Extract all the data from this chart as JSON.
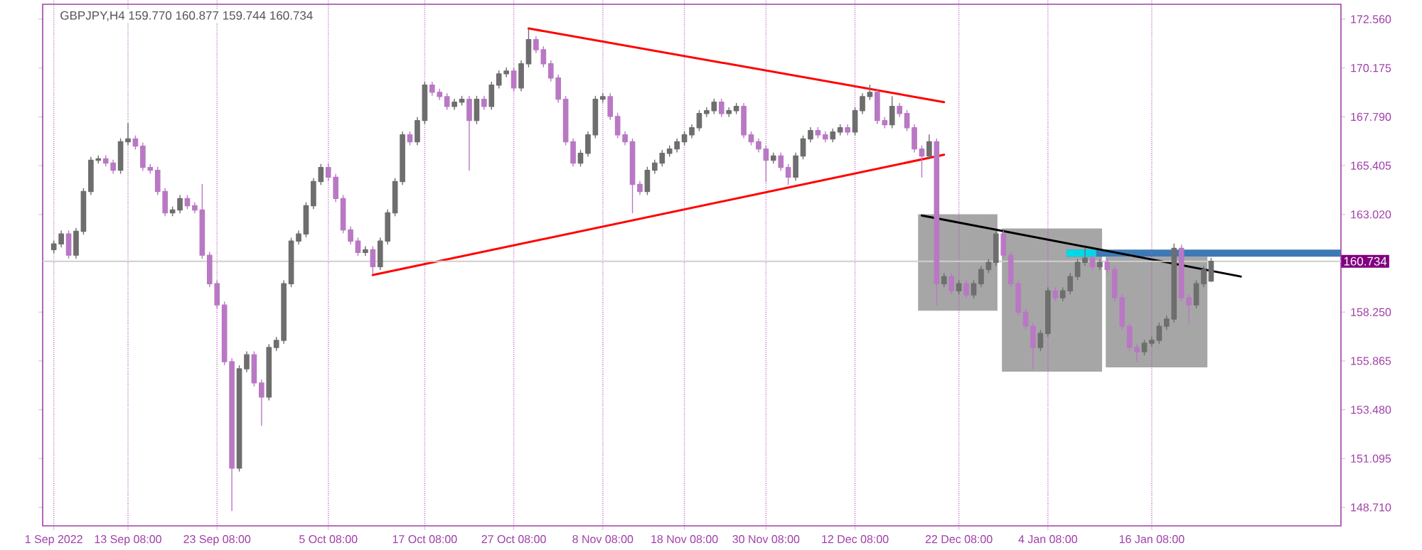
{
  "chart_data": {
    "type": "candlestick",
    "title": "GBPJPY,H4 159.770 160.877 159.744 160.734",
    "categories": [
      "1 Sep 2022",
      null,
      null,
      null,
      null,
      null,
      null,
      null,
      null,
      null,
      "13 Sep 08:00",
      null,
      null,
      null,
      null,
      null,
      null,
      null,
      null,
      null,
      null,
      null,
      "23 Sep 08:00",
      null,
      null,
      null,
      null,
      null,
      null,
      null,
      null,
      null,
      null,
      null,
      null,
      null,
      null,
      "5 Oct 08:00",
      null,
      null,
      null,
      null,
      null,
      null,
      null,
      null,
      null,
      null,
      null,
      null,
      "17 Oct 08:00",
      null,
      null,
      null,
      null,
      null,
      null,
      null,
      null,
      null,
      null,
      null,
      "27 Oct 08:00",
      null,
      null,
      null,
      null,
      null,
      null,
      null,
      null,
      null,
      null,
      null,
      "8 Nov 08:00",
      null,
      null,
      null,
      null,
      null,
      null,
      null,
      null,
      null,
      null,
      "18 Nov 08:00",
      null,
      null,
      null,
      null,
      null,
      null,
      null,
      null,
      null,
      null,
      "30 Nov 08:00",
      null,
      null,
      null,
      null,
      null,
      null,
      null,
      null,
      null,
      null,
      null,
      "12 Dec 08:00",
      null,
      null,
      null,
      null,
      null,
      null,
      null,
      null,
      null,
      null,
      null,
      null,
      null,
      "22 Dec 08:00",
      null,
      null,
      null,
      null,
      null,
      null,
      null,
      null,
      null,
      null,
      null,
      "4 Jan 08:00",
      null,
      null,
      null,
      null,
      null,
      null,
      null,
      null,
      null,
      null,
      null,
      null,
      null,
      "16 Jan 08:00",
      null,
      null,
      null,
      null,
      null,
      null,
      null,
      null,
      null,
      null,
      null,
      null,
      null,
      null,
      null,
      null,
      null,
      null,
      null,
      null,
      null,
      null,
      null,
      null,
      null
    ],
    "ohlc": [
      [
        161.3,
        161.73,
        161.15,
        161.58
      ],
      [
        161.58,
        162.22,
        161.43,
        162.07
      ],
      [
        162.07,
        162.22,
        160.88,
        161.03
      ],
      [
        161.03,
        162.35,
        160.88,
        162.2
      ],
      [
        162.2,
        164.29,
        162.05,
        164.14
      ],
      [
        164.14,
        165.82,
        163.99,
        165.67
      ],
      [
        165.67,
        165.89,
        165.52,
        165.74
      ],
      [
        165.74,
        165.89,
        165.38,
        165.53
      ],
      [
        165.53,
        165.68,
        165.03,
        165.18
      ],
      [
        165.18,
        166.72,
        165.03,
        166.57
      ],
      [
        166.57,
        167.47,
        166.42,
        166.71
      ],
      [
        166.71,
        166.86,
        166.21,
        166.36
      ],
      [
        166.36,
        166.51,
        165.17,
        165.32
      ],
      [
        165.32,
        165.47,
        165.03,
        165.18
      ],
      [
        165.18,
        165.33,
        163.99,
        164.14
      ],
      [
        164.14,
        164.29,
        162.95,
        163.1
      ],
      [
        163.1,
        163.39,
        162.95,
        163.24
      ],
      [
        163.24,
        163.95,
        163.09,
        163.8
      ],
      [
        163.8,
        163.95,
        163.3,
        163.45
      ],
      [
        163.45,
        163.6,
        163.09,
        163.24
      ],
      [
        163.24,
        164.49,
        160.88,
        161.03
      ],
      [
        161.03,
        161.18,
        159.49,
        159.64
      ],
      [
        159.64,
        159.79,
        158.45,
        158.6
      ],
      [
        158.6,
        158.75,
        155.68,
        155.83
      ],
      [
        155.83,
        155.98,
        148.55,
        150.63
      ],
      [
        150.63,
        155.63,
        150.48,
        155.48
      ],
      [
        155.48,
        156.32,
        155.33,
        156.17
      ],
      [
        156.17,
        156.32,
        154.64,
        154.79
      ],
      [
        154.79,
        154.94,
        152.71,
        154.1
      ],
      [
        154.1,
        156.67,
        153.95,
        156.52
      ],
      [
        156.52,
        157.02,
        156.37,
        156.87
      ],
      [
        156.87,
        159.79,
        156.72,
        159.64
      ],
      [
        159.64,
        161.87,
        159.49,
        161.72
      ],
      [
        161.72,
        162.22,
        161.57,
        162.07
      ],
      [
        162.07,
        163.6,
        161.92,
        163.45
      ],
      [
        163.45,
        164.78,
        163.3,
        164.63
      ],
      [
        164.63,
        165.47,
        164.48,
        165.32
      ],
      [
        165.32,
        165.47,
        164.69,
        164.84
      ],
      [
        164.84,
        164.99,
        163.65,
        163.8
      ],
      [
        163.8,
        163.95,
        162.12,
        162.27
      ],
      [
        162.27,
        162.42,
        161.57,
        161.72
      ],
      [
        161.72,
        161.87,
        161.01,
        161.16
      ],
      [
        161.16,
        161.45,
        161.01,
        161.3
      ],
      [
        161.3,
        161.45,
        160.12,
        160.47
      ],
      [
        160.47,
        161.87,
        160.32,
        161.72
      ],
      [
        161.72,
        163.25,
        161.57,
        163.1
      ],
      [
        163.1,
        164.78,
        162.95,
        164.63
      ],
      [
        164.63,
        167.06,
        164.48,
        166.91
      ],
      [
        166.91,
        167.06,
        166.42,
        166.57
      ],
      [
        166.57,
        167.76,
        166.42,
        167.61
      ],
      [
        167.61,
        169.49,
        167.46,
        169.34
      ],
      [
        169.34,
        169.49,
        168.84,
        168.99
      ],
      [
        168.99,
        169.14,
        168.63,
        168.78
      ],
      [
        168.78,
        168.93,
        168.15,
        168.3
      ],
      [
        168.3,
        168.66,
        168.15,
        168.51
      ],
      [
        168.51,
        168.8,
        168.36,
        168.65
      ],
      [
        168.65,
        168.8,
        165.18,
        167.61
      ],
      [
        167.61,
        168.8,
        167.46,
        168.65
      ],
      [
        168.65,
        168.8,
        168.15,
        168.3
      ],
      [
        168.3,
        169.49,
        168.15,
        169.34
      ],
      [
        169.34,
        170.04,
        169.19,
        169.89
      ],
      [
        169.89,
        170.18,
        169.74,
        170.03
      ],
      [
        170.03,
        170.18,
        169.05,
        169.2
      ],
      [
        169.2,
        170.53,
        169.05,
        170.38
      ],
      [
        170.38,
        172.11,
        170.23,
        171.56
      ],
      [
        171.56,
        171.71,
        170.92,
        171.07
      ],
      [
        171.07,
        171.22,
        170.23,
        170.38
      ],
      [
        170.38,
        170.53,
        169.54,
        169.69
      ],
      [
        169.69,
        169.84,
        168.5,
        168.65
      ],
      [
        168.65,
        168.8,
        166.42,
        166.57
      ],
      [
        166.57,
        166.72,
        165.38,
        165.53
      ],
      [
        165.53,
        166.16,
        165.38,
        166.01
      ],
      [
        166.01,
        167.06,
        165.86,
        166.91
      ],
      [
        166.91,
        168.8,
        166.76,
        168.65
      ],
      [
        168.65,
        168.93,
        168.5,
        168.78
      ],
      [
        168.78,
        168.93,
        167.66,
        167.81
      ],
      [
        167.81,
        167.96,
        166.76,
        166.91
      ],
      [
        166.91,
        167.06,
        166.42,
        166.57
      ],
      [
        166.57,
        166.72,
        163.1,
        164.49
      ],
      [
        164.49,
        164.64,
        163.99,
        164.14
      ],
      [
        164.14,
        165.33,
        163.99,
        165.18
      ],
      [
        165.18,
        165.68,
        165.03,
        165.53
      ],
      [
        165.53,
        166.16,
        165.38,
        166.01
      ],
      [
        166.01,
        166.37,
        165.86,
        166.22
      ],
      [
        166.22,
        166.72,
        166.07,
        166.57
      ],
      [
        166.57,
        167.06,
        166.42,
        166.91
      ],
      [
        166.91,
        167.41,
        166.76,
        167.26
      ],
      [
        167.26,
        168.1,
        167.11,
        167.95
      ],
      [
        167.95,
        168.24,
        167.8,
        168.09
      ],
      [
        168.09,
        168.66,
        167.94,
        168.51
      ],
      [
        168.51,
        168.66,
        167.8,
        167.95
      ],
      [
        167.95,
        168.24,
        167.8,
        168.09
      ],
      [
        168.09,
        168.45,
        167.94,
        168.3
      ],
      [
        168.3,
        168.45,
        166.76,
        166.91
      ],
      [
        166.91,
        167.06,
        166.42,
        166.57
      ],
      [
        166.57,
        166.72,
        166.07,
        166.22
      ],
      [
        166.22,
        166.37,
        164.63,
        165.67
      ],
      [
        165.67,
        166.03,
        165.52,
        165.88
      ],
      [
        165.88,
        166.03,
        165.17,
        165.32
      ],
      [
        165.32,
        165.47,
        164.49,
        164.84
      ],
      [
        164.84,
        166.03,
        164.69,
        165.88
      ],
      [
        165.88,
        166.86,
        165.73,
        166.71
      ],
      [
        166.71,
        167.27,
        166.56,
        167.12
      ],
      [
        167.12,
        167.27,
        166.76,
        166.91
      ],
      [
        166.91,
        167.06,
        166.56,
        166.71
      ],
      [
        166.71,
        167.2,
        166.56,
        167.05
      ],
      [
        167.05,
        167.41,
        166.9,
        167.26
      ],
      [
        167.26,
        167.41,
        166.9,
        167.05
      ],
      [
        167.05,
        168.24,
        166.9,
        168.09
      ],
      [
        168.09,
        168.93,
        167.94,
        168.78
      ],
      [
        168.78,
        169.34,
        168.63,
        168.99
      ],
      [
        168.99,
        169.14,
        167.46,
        167.61
      ],
      [
        167.61,
        167.76,
        167.25,
        167.4
      ],
      [
        167.4,
        168.78,
        167.25,
        168.3
      ],
      [
        168.3,
        168.45,
        167.8,
        167.95
      ],
      [
        167.95,
        168.1,
        167.11,
        167.26
      ],
      [
        167.26,
        167.41,
        166.07,
        166.22
      ],
      [
        166.22,
        166.37,
        164.84,
        165.88
      ],
      [
        165.88,
        166.91,
        165.73,
        166.57
      ],
      [
        166.57,
        166.72,
        158.6,
        159.64
      ],
      [
        159.64,
        160.14,
        159.49,
        159.99
      ],
      [
        159.99,
        160.14,
        159.14,
        159.29
      ],
      [
        159.29,
        159.79,
        159.14,
        159.64
      ],
      [
        159.64,
        159.79,
        158.94,
        159.09
      ],
      [
        159.09,
        159.79,
        158.94,
        159.64
      ],
      [
        159.64,
        160.48,
        159.49,
        160.33
      ],
      [
        160.33,
        160.83,
        160.18,
        160.68
      ],
      [
        160.68,
        162.22,
        160.53,
        162.07
      ],
      [
        162.07,
        162.22,
        160.88,
        161.03
      ],
      [
        161.03,
        161.18,
        159.49,
        159.64
      ],
      [
        159.64,
        159.79,
        158.1,
        158.25
      ],
      [
        158.25,
        158.4,
        157.41,
        157.56
      ],
      [
        157.56,
        157.71,
        155.48,
        156.52
      ],
      [
        156.52,
        157.36,
        156.37,
        157.21
      ],
      [
        157.21,
        159.44,
        157.06,
        159.29
      ],
      [
        159.29,
        159.44,
        158.8,
        158.95
      ],
      [
        158.95,
        159.44,
        158.8,
        159.29
      ],
      [
        159.29,
        160.14,
        159.14,
        159.99
      ],
      [
        159.99,
        160.83,
        159.84,
        160.68
      ],
      [
        160.68,
        161.37,
        160.53,
        160.89
      ],
      [
        160.89,
        161.04,
        160.32,
        160.47
      ],
      [
        160.47,
        160.83,
        160.32,
        160.68
      ],
      [
        160.68,
        160.83,
        160.18,
        160.33
      ],
      [
        160.33,
        160.48,
        158.8,
        158.95
      ],
      [
        158.95,
        159.1,
        157.41,
        157.56
      ],
      [
        157.56,
        157.71,
        156.37,
        156.52
      ],
      [
        156.52,
        156.67,
        155.83,
        156.31
      ],
      [
        156.31,
        156.88,
        156.16,
        156.73
      ],
      [
        156.73,
        157.02,
        156.58,
        156.87
      ],
      [
        156.87,
        157.71,
        156.72,
        157.56
      ],
      [
        157.56,
        158.06,
        157.41,
        157.91
      ],
      [
        157.91,
        161.58,
        157.76,
        161.37
      ],
      [
        161.37,
        161.52,
        158.8,
        158.95
      ],
      [
        158.95,
        159.1,
        157.7,
        158.6
      ],
      [
        158.6,
        159.79,
        158.45,
        159.64
      ],
      [
        159.64,
        160.48,
        159.49,
        160.33
      ],
      [
        159.77,
        160.877,
        159.744,
        160.734
      ],
      null,
      null,
      null,
      null,
      null,
      null,
      null,
      null,
      null,
      null,
      null,
      null,
      null,
      null,
      null,
      null,
      null
    ],
    "colors": [
      "#6e6e6e",
      "#6e6e6e",
      "#b978c4",
      "#6e6e6e",
      "#6e6e6e",
      "#6e6e6e",
      "#6e6e6e",
      "#b978c4",
      "#b978c4",
      "#6e6e6e",
      "#6e6e6e",
      "#b978c4",
      "#b978c4",
      "#b978c4",
      "#b978c4",
      "#b978c4",
      "#6e6e6e",
      "#6e6e6e",
      "#b978c4",
      "#b978c4",
      "#b978c4",
      "#b978c4",
      "#b978c4",
      "#b978c4",
      "#b978c4",
      "#6e6e6e",
      "#6e6e6e",
      "#b978c4",
      "#b978c4",
      "#6e6e6e",
      "#6e6e6e",
      "#6e6e6e",
      "#6e6e6e",
      "#6e6e6e",
      "#6e6e6e",
      "#6e6e6e",
      "#6e6e6e",
      "#b978c4",
      "#b978c4",
      "#b978c4",
      "#b978c4",
      "#b978c4",
      "#6e6e6e",
      "#b978c4",
      "#6e6e6e",
      "#6e6e6e",
      "#6e6e6e",
      "#6e6e6e",
      "#b978c4",
      "#6e6e6e",
      "#6e6e6e",
      "#b978c4",
      "#b978c4",
      "#b978c4",
      "#6e6e6e",
      "#6e6e6e",
      "#b978c4",
      "#6e6e6e",
      "#b978c4",
      "#6e6e6e",
      "#6e6e6e",
      "#6e6e6e",
      "#b978c4",
      "#6e6e6e",
      "#6e6e6e",
      "#b978c4",
      "#b978c4",
      "#b978c4",
      "#b978c4",
      "#b978c4",
      "#b978c4",
      "#6e6e6e",
      "#6e6e6e",
      "#6e6e6e",
      "#6e6e6e",
      "#b978c4",
      "#b978c4",
      "#b978c4",
      "#b978c4",
      "#b978c4",
      "#6e6e6e",
      "#6e6e6e",
      "#6e6e6e",
      "#6e6e6e",
      "#6e6e6e",
      "#6e6e6e",
      "#6e6e6e",
      "#6e6e6e",
      "#6e6e6e",
      "#6e6e6e",
      "#b978c4",
      "#6e6e6e",
      "#6e6e6e",
      "#b978c4",
      "#b978c4",
      "#b978c4",
      "#b978c4",
      "#6e6e6e",
      "#b978c4",
      "#b978c4",
      "#6e6e6e",
      "#6e6e6e",
      "#6e6e6e",
      "#b978c4",
      "#b978c4",
      "#6e6e6e",
      "#6e6e6e",
      "#b978c4",
      "#6e6e6e",
      "#6e6e6e",
      "#6e6e6e",
      "#b978c4",
      "#b978c4",
      "#6e6e6e",
      "#b978c4",
      "#b978c4",
      "#b978c4",
      "#b978c4",
      "#6e6e6e",
      "#b978c4",
      "#6e6e6e",
      "#b978c4",
      "#6e6e6e",
      "#b978c4",
      "#6e6e6e",
      "#6e6e6e",
      "#6e6e6e",
      "#6e6e6e",
      "#b978c4",
      "#b978c4",
      "#b978c4",
      "#b978c4",
      "#b978c4",
      "#6e6e6e",
      "#6e6e6e",
      "#b978c4",
      "#6e6e6e",
      "#6e6e6e",
      "#6e6e6e",
      "#6e6e6e",
      "#b978c4",
      "#6e6e6e",
      "#b978c4",
      "#b978c4",
      "#b978c4",
      "#b978c4",
      "#b978c4",
      "#6e6e6e",
      "#6e6e6e",
      "#6e6e6e",
      "#6e6e6e",
      "#6e6e6e",
      "#b978c4",
      "#b978c4",
      "#6e6e6e",
      "#6e6e6e",
      "#6e6e6e",
      null,
      null,
      null,
      null,
      null,
      null,
      null,
      null,
      null,
      null,
      null,
      null,
      null,
      null,
      null,
      null,
      null
    ],
    "series": [
      {
        "type": "line",
        "color": "#ff0000",
        "values": [
          null,
          null,
          null,
          null,
          null,
          null,
          null,
          null,
          null,
          null,
          null,
          null,
          null,
          null,
          null,
          null,
          null,
          null,
          null,
          null,
          null,
          null,
          null,
          null,
          null,
          null,
          null,
          null,
          null,
          null,
          null,
          null,
          null,
          null,
          null,
          null,
          null,
          null,
          null,
          null,
          null,
          null,
          null,
          null,
          null,
          null,
          null,
          null,
          null,
          null,
          null,
          null,
          null,
          null,
          null,
          null,
          null,
          null,
          null,
          null,
          null,
          null,
          null,
          null,
          172.11,
          null,
          null,
          null,
          null,
          null,
          null,
          null,
          null,
          null,
          null,
          null,
          null,
          null,
          null,
          null,
          null,
          null,
          null,
          null,
          null,
          null,
          null,
          null,
          null,
          null,
          null,
          null,
          null,
          null,
          null,
          null,
          null,
          null,
          null,
          null,
          null,
          null,
          null,
          null,
          null,
          null,
          null,
          null,
          null,
          null,
          null,
          null,
          null,
          null,
          null,
          null,
          null,
          null,
          null,
          null,
          168.51,
          null,
          null,
          null,
          null,
          null,
          null,
          null,
          null,
          null,
          null,
          null,
          null,
          null,
          null,
          null,
          null,
          null,
          null,
          null,
          null,
          null,
          null,
          null,
          null,
          null,
          null,
          null,
          null,
          null,
          null,
          null,
          null,
          null,
          null,
          null,
          null,
          null,
          null,
          null,
          null,
          null,
          null,
          null,
          null,
          null,
          null,
          null,
          null,
          null,
          null,
          null,
          null,
          null
        ]
      },
      {
        "type": "line",
        "color": "#ff0000",
        "values": [
          null,
          null,
          null,
          null,
          null,
          null,
          null,
          null,
          null,
          null,
          null,
          null,
          null,
          null,
          null,
          null,
          null,
          null,
          null,
          null,
          null,
          null,
          null,
          null,
          null,
          null,
          null,
          null,
          null,
          null,
          null,
          null,
          null,
          null,
          null,
          null,
          null,
          null,
          null,
          null,
          null,
          null,
          null,
          160.06,
          null,
          null,
          null,
          null,
          null,
          null,
          null,
          null,
          null,
          null,
          null,
          null,
          null,
          null,
          null,
          null,
          null,
          null,
          null,
          null,
          null,
          null,
          null,
          null,
          null,
          null,
          null,
          null,
          null,
          null,
          null,
          null,
          null,
          null,
          null,
          null,
          null,
          null,
          null,
          null,
          null,
          null,
          null,
          null,
          null,
          null,
          null,
          null,
          null,
          null,
          null,
          null,
          null,
          null,
          null,
          null,
          null,
          null,
          null,
          null,
          null,
          null,
          null,
          null,
          null,
          null,
          null,
          null,
          null,
          null,
          null,
          null,
          null,
          null,
          null,
          null,
          165.94,
          null,
          null,
          null,
          null,
          null,
          null,
          null,
          null,
          null,
          null,
          null,
          null,
          null,
          null,
          null,
          null,
          null,
          null,
          null,
          null,
          null,
          null,
          null,
          null,
          null,
          null,
          null,
          null,
          null,
          null,
          null,
          null,
          null,
          null,
          null,
          null,
          null,
          null,
          null,
          null,
          null,
          null,
          null,
          null,
          null,
          null,
          null,
          null,
          null,
          null,
          null,
          null,
          null
        ]
      },
      {
        "type": "line",
        "color": "#000000",
        "values": [
          null,
          null,
          null,
          null,
          null,
          null,
          null,
          null,
          null,
          null,
          null,
          null,
          null,
          null,
          null,
          null,
          null,
          null,
          null,
          null,
          null,
          null,
          null,
          null,
          null,
          null,
          null,
          null,
          null,
          null,
          null,
          null,
          null,
          null,
          null,
          null,
          null,
          null,
          null,
          null,
          null,
          null,
          null,
          null,
          null,
          null,
          null,
          null,
          null,
          null,
          null,
          null,
          null,
          null,
          null,
          null,
          null,
          null,
          null,
          null,
          null,
          null,
          null,
          null,
          null,
          null,
          null,
          null,
          null,
          null,
          null,
          null,
          null,
          null,
          null,
          null,
          null,
          null,
          null,
          null,
          null,
          null,
          null,
          null,
          null,
          null,
          null,
          null,
          null,
          null,
          null,
          null,
          null,
          null,
          null,
          null,
          null,
          null,
          null,
          null,
          null,
          null,
          null,
          null,
          null,
          null,
          null,
          null,
          null,
          null,
          null,
          null,
          null,
          null,
          null,
          null,
          null,
          162.97,
          null,
          null,
          null,
          null,
          null,
          null,
          null,
          null,
          null,
          null,
          null,
          null,
          null,
          null,
          null,
          null,
          null,
          null,
          null,
          null,
          null,
          null,
          null,
          null,
          null,
          null,
          null,
          null,
          null,
          null,
          null,
          null,
          null,
          null,
          null,
          null,
          null,
          null,
          null,
          null,
          null,
          null,
          159.99,
          null,
          null,
          null,
          null,
          null,
          null,
          null,
          null,
          null,
          null,
          null,
          null,
          null
        ]
      }
    ],
    "ref_lines": [
      {
        "axis": "y",
        "value": 160.734,
        "label": "160.734",
        "color": "#cfcfcf"
      }
    ],
    "ylim": [
      147.81,
      173.29
    ],
    "yticks": [
      {
        "value": 148.71,
        "label": "148.710"
      },
      151.095,
      {
        "value": 153.48,
        "label": "153.480"
      },
      155.865,
      {
        "value": 158.25,
        "label": "158.250"
      },
      {
        "value": 163.02,
        "label": "163.020"
      },
      165.405,
      {
        "value": 167.79,
        "label": "167.790"
      },
      170.175,
      {
        "value": 172.56,
        "label": "172.560"
      }
    ],
    "grid": "x"
  }
}
